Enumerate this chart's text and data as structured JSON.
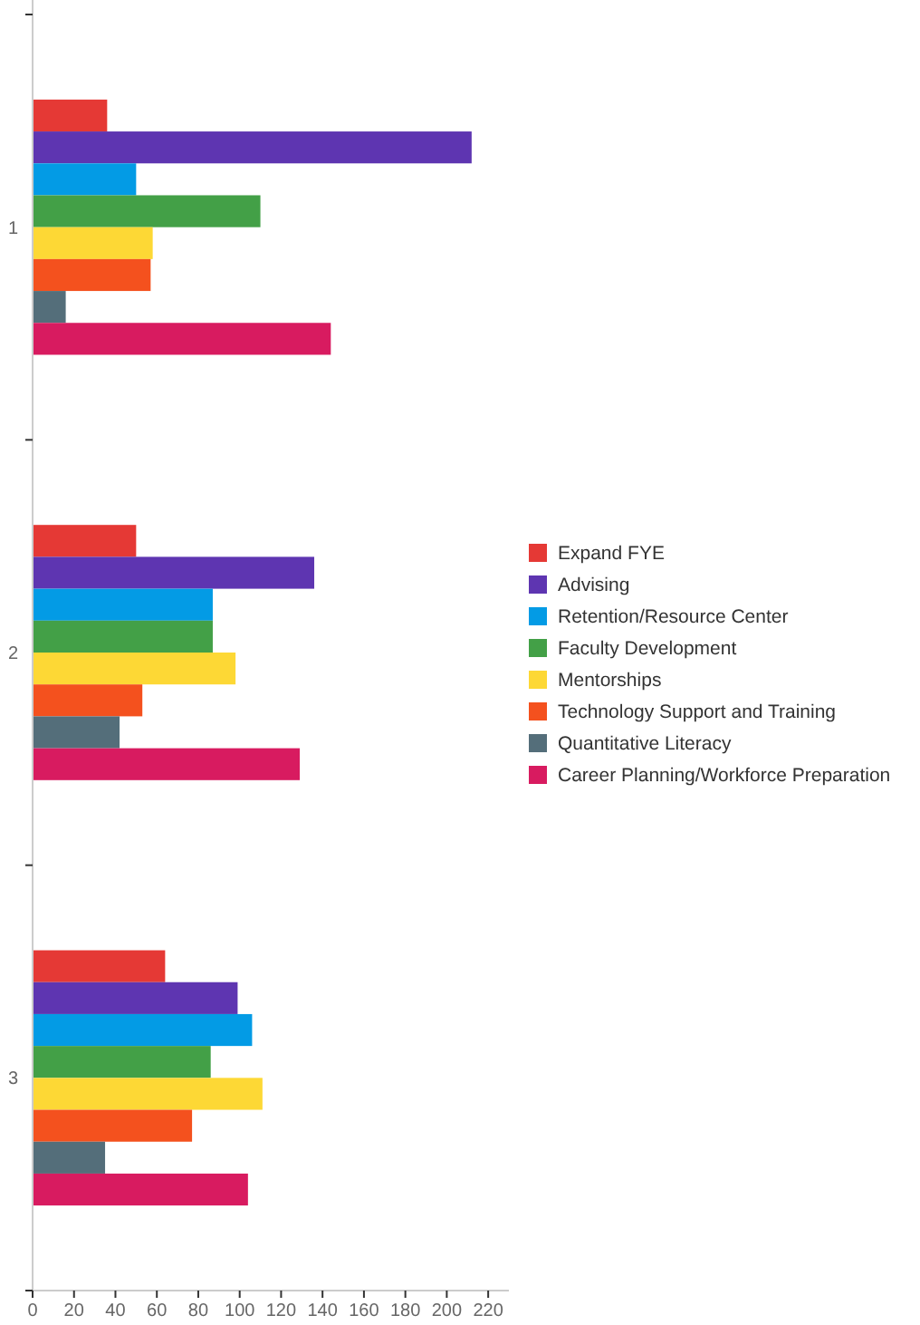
{
  "chart_data": {
    "type": "bar",
    "orientation": "horizontal",
    "categories": [
      "1",
      "2",
      "3"
    ],
    "series": [
      {
        "name": "Expand FYE",
        "color": "#e53935",
        "values": [
          36,
          50,
          64
        ]
      },
      {
        "name": "Advising",
        "color": "#5e35b1",
        "values": [
          212,
          136,
          99
        ]
      },
      {
        "name": "Retention/Resource Center",
        "color": "#039be5",
        "values": [
          50,
          87,
          106
        ]
      },
      {
        "name": "Faculty Development",
        "color": "#43a047",
        "values": [
          110,
          87,
          86
        ]
      },
      {
        "name": "Mentorships",
        "color": "#fdd835",
        "values": [
          58,
          98,
          111
        ]
      },
      {
        "name": "Technology Support and Training",
        "color": "#f4511e",
        "values": [
          57,
          53,
          77
        ]
      },
      {
        "name": "Quantitative Literacy",
        "color": "#546e7a",
        "values": [
          16,
          42,
          35
        ]
      },
      {
        "name": "Career Planning/Workforce Preparation",
        "color": "#d81b60",
        "values": [
          144,
          129,
          104
        ]
      }
    ],
    "xlim": [
      0,
      230
    ],
    "xticks": [
      0,
      20,
      40,
      60,
      80,
      100,
      120,
      140,
      160,
      180,
      200,
      220
    ],
    "legend": "right",
    "grid": false
  }
}
